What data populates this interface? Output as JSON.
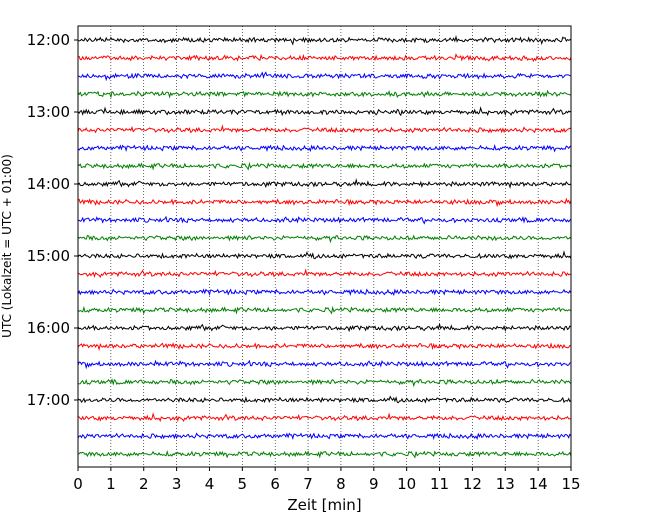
{
  "chart_data": {
    "type": "line",
    "title": "",
    "xlabel": "Zeit  [min]",
    "ylabel": "UTC (Lokalzeit = UTC + 01:00)",
    "xlim": [
      0,
      15
    ],
    "x_ticks": [
      "0",
      "1",
      "2",
      "3",
      "4",
      "5",
      "6",
      "7",
      "8",
      "9",
      "10",
      "11",
      "12",
      "13",
      "14",
      "15"
    ],
    "y_ticks": [
      "12:00",
      "13:00",
      "14:00",
      "15:00",
      "16:00",
      "17:00"
    ],
    "grid": "vertical dotted lines at each minute",
    "trace_colors": [
      "#000000",
      "#ff0000",
      "#0000ff",
      "#008000"
    ],
    "traces": [
      {
        "start": "12:00",
        "color": "#000000"
      },
      {
        "start": "12:15",
        "color": "#ff0000"
      },
      {
        "start": "12:30",
        "color": "#0000ff"
      },
      {
        "start": "12:45",
        "color": "#008000"
      },
      {
        "start": "13:00",
        "color": "#000000"
      },
      {
        "start": "13:15",
        "color": "#ff0000"
      },
      {
        "start": "13:30",
        "color": "#0000ff"
      },
      {
        "start": "13:45",
        "color": "#008000"
      },
      {
        "start": "14:00",
        "color": "#000000"
      },
      {
        "start": "14:15",
        "color": "#ff0000"
      },
      {
        "start": "14:30",
        "color": "#0000ff"
      },
      {
        "start": "14:45",
        "color": "#008000"
      },
      {
        "start": "15:00",
        "color": "#000000"
      },
      {
        "start": "15:15",
        "color": "#ff0000"
      },
      {
        "start": "15:30",
        "color": "#0000ff"
      },
      {
        "start": "15:45",
        "color": "#008000"
      },
      {
        "start": "16:00",
        "color": "#000000"
      },
      {
        "start": "16:15",
        "color": "#ff0000"
      },
      {
        "start": "16:30",
        "color": "#0000ff"
      },
      {
        "start": "16:45",
        "color": "#008000"
      },
      {
        "start": "17:00",
        "color": "#000000"
      },
      {
        "start": "17:15",
        "color": "#ff0000"
      },
      {
        "start": "17:30",
        "color": "#0000ff"
      },
      {
        "start": "17:45",
        "color": "#008000"
      }
    ]
  }
}
